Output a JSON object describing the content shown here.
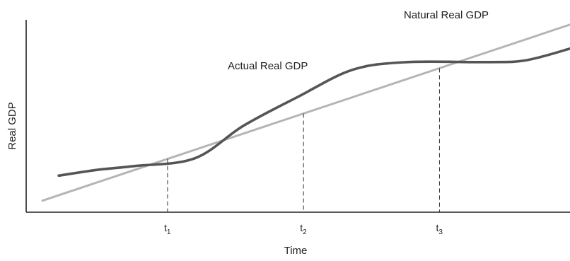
{
  "chart_data": {
    "type": "line",
    "title": "",
    "xlabel": "Time",
    "ylabel": "Real GDP",
    "grid": false,
    "legend": "none",
    "x_ticks": [
      {
        "base": "t",
        "sub": "1"
      },
      {
        "base": "t",
        "sub": "2"
      },
      {
        "base": "t",
        "sub": "3"
      }
    ],
    "series": [
      {
        "name": "Natural Real GDP",
        "color": "#b5b5b5",
        "points": [
          [
            0.3,
            0.6
          ],
          [
            10,
            9.75
          ]
        ]
      },
      {
        "name": "Actual Real GDP",
        "color": "#555555",
        "points": [
          [
            0.6,
            1.9
          ],
          [
            1.3,
            2.2
          ],
          [
            2,
            2.4
          ],
          [
            3.1,
            2.8
          ],
          [
            4,
            4.5
          ],
          [
            5,
            6.0
          ],
          [
            6,
            7.4
          ],
          [
            7,
            7.8
          ],
          [
            8.5,
            7.8
          ],
          [
            9.2,
            7.9
          ],
          [
            10,
            8.5
          ]
        ]
      }
    ],
    "intersections": [
      {
        "x": 2.6,
        "tick": 0
      },
      {
        "x": 5.1,
        "tick": 1
      },
      {
        "x": 7.6,
        "tick": 2
      }
    ]
  }
}
